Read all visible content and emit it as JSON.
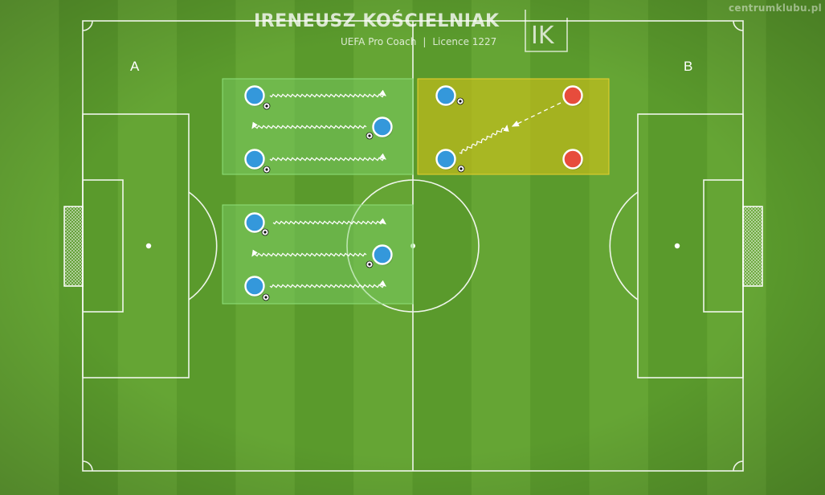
{
  "watermark": "centrumklubu.pl",
  "brand": {
    "name": "IRENEUSZ KOŚCIELNIAK",
    "subtitle_left": "UEFA Pro Coach",
    "separator": "|",
    "subtitle_right": "Licence 1227",
    "logo_letters": "IK"
  },
  "labels": {
    "left_goal": "A",
    "right_goal": "B"
  },
  "colors": {
    "pitch_light": "#65a534",
    "pitch_dark": "#5a9a2c",
    "line": "#ffffff",
    "blue_player": "#3498db",
    "red_player": "#e74c3c",
    "green_zone": "#7fd36a",
    "yellow_zone": "#cfc21e"
  },
  "zones": [
    {
      "id": "zone-top-left",
      "color": "green"
    },
    {
      "id": "zone-bottom-left",
      "color": "green"
    },
    {
      "id": "zone-top-right",
      "color": "yellow"
    }
  ],
  "players": [
    {
      "team": "blue",
      "has_ball": true
    },
    {
      "team": "blue",
      "has_ball": true
    },
    {
      "team": "blue",
      "has_ball": true
    },
    {
      "team": "blue",
      "has_ball": true
    },
    {
      "team": "blue",
      "has_ball": true
    },
    {
      "team": "blue",
      "has_ball": true
    },
    {
      "team": "blue",
      "has_ball": true
    },
    {
      "team": "blue",
      "has_ball": true
    },
    {
      "team": "red",
      "has_ball": false
    },
    {
      "team": "red",
      "has_ball": false
    }
  ],
  "movement_legend": {
    "dribble": "wavy-arrow",
    "pass": "dashed-arrow"
  }
}
